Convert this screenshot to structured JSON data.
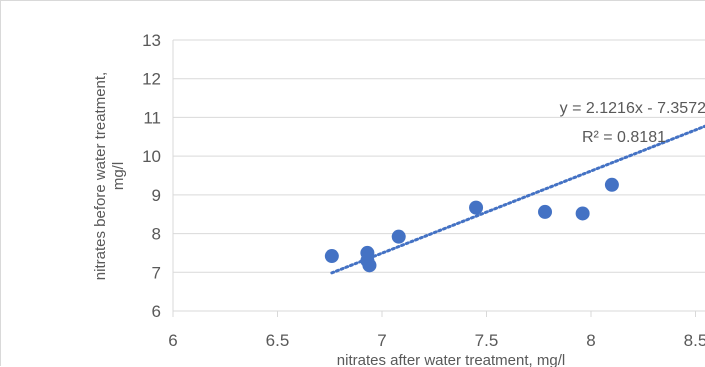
{
  "chart_data": {
    "type": "scatter",
    "xlabel": "nitrates after water treatment, mg/l",
    "ylabel_lines": [
      "nitrates before water treatment,",
      "mg/l"
    ],
    "xlim": [
      6,
      8.5
    ],
    "ylim": [
      6,
      13
    ],
    "xticks": [
      "6",
      "6.5",
      "7",
      "7.5",
      "8",
      "8.5"
    ],
    "yticks": [
      "6",
      "7",
      "8",
      "9",
      "10",
      "11",
      "12",
      "13"
    ],
    "grid": "horizontal",
    "marker_color": "#4472c4",
    "points": [
      {
        "x": 6.76,
        "y": 7.42
      },
      {
        "x": 6.93,
        "y": 7.5
      },
      {
        "x": 6.93,
        "y": 7.3
      },
      {
        "x": 6.94,
        "y": 7.18
      },
      {
        "x": 7.08,
        "y": 7.92
      },
      {
        "x": 7.45,
        "y": 8.67
      },
      {
        "x": 7.78,
        "y": 8.56
      },
      {
        "x": 7.96,
        "y": 8.52
      },
      {
        "x": 8.1,
        "y": 9.26
      }
    ],
    "trendline": {
      "type": "linear",
      "slope": 2.1216,
      "intercept": -7.3572,
      "x_range": [
        6.76,
        8.55
      ],
      "style": "dotted",
      "color": "#4472c4",
      "equation_label": "y = 2.1216x - 7.3572",
      "r2_label": "R² = 0.8181"
    }
  }
}
